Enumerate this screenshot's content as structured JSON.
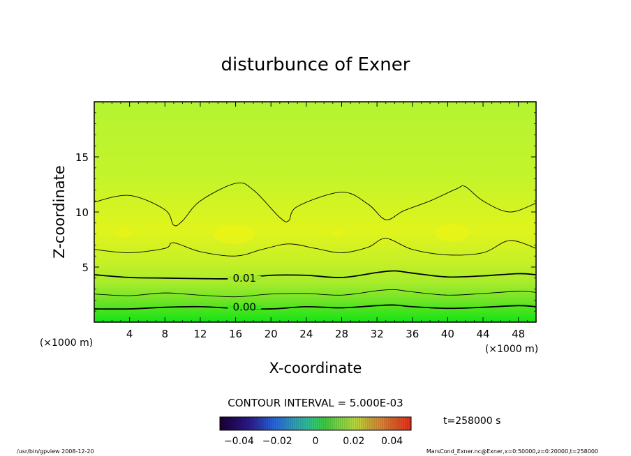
{
  "chart_data": {
    "type": "heatmap",
    "title": "disturbunce of Exner",
    "xlabel": "X-coordinate",
    "ylabel": "Z-coordinate",
    "x_unit_left": "(×1000 m)",
    "x_unit_right": "(×1000 m)",
    "xlim": [
      0,
      50
    ],
    "ylim": [
      0,
      20
    ],
    "x_ticks": [
      4,
      8,
      12,
      16,
      20,
      24,
      28,
      32,
      36,
      40,
      44,
      48
    ],
    "y_ticks": [
      5,
      10,
      15
    ],
    "contour_labels": [
      {
        "text": "0.01",
        "x": 17,
        "y": 4.0
      },
      {
        "text": "0.00",
        "x": 17,
        "y": 1.35
      }
    ],
    "contour_lines": [
      {
        "name": "upper",
        "x": [
          0,
          4,
          8,
          9,
          10,
          12,
          16,
          18,
          21,
          22,
          23,
          28,
          31,
          33,
          35,
          38,
          41,
          42,
          44,
          47,
          50
        ],
        "y": [
          10.9,
          11.5,
          10.2,
          8.8,
          9.2,
          11.0,
          12.6,
          12.0,
          9.5,
          9.2,
          10.5,
          11.8,
          10.7,
          9.3,
          10.1,
          11.0,
          12.1,
          12.3,
          11.0,
          10.0,
          10.8
        ],
        "bold": false
      },
      {
        "name": "mid-upper",
        "x": [
          0,
          4,
          8,
          9,
          12,
          16,
          19,
          22,
          25,
          28,
          31,
          33,
          36,
          40,
          44,
          47,
          50
        ],
        "y": [
          6.6,
          6.3,
          6.7,
          7.2,
          6.4,
          6.0,
          6.6,
          7.1,
          6.7,
          6.3,
          6.8,
          7.6,
          6.6,
          6.1,
          6.3,
          7.4,
          6.7
        ],
        "bold": false
      },
      {
        "name": "0.01",
        "x": [
          0,
          4,
          8,
          12,
          16,
          20,
          24,
          28,
          32,
          34,
          36,
          40,
          44,
          48,
          50
        ],
        "y": [
          4.3,
          4.05,
          4.0,
          3.95,
          3.95,
          4.25,
          4.25,
          4.05,
          4.5,
          4.65,
          4.45,
          4.1,
          4.2,
          4.4,
          4.3
        ],
        "bold": true
      },
      {
        "name": "mid-lower",
        "x": [
          0,
          4,
          8,
          12,
          16,
          20,
          24,
          28,
          32,
          34,
          36,
          40,
          44,
          48,
          50
        ],
        "y": [
          2.55,
          2.4,
          2.65,
          2.45,
          2.3,
          2.55,
          2.6,
          2.45,
          2.85,
          2.95,
          2.75,
          2.45,
          2.6,
          2.8,
          2.7
        ],
        "bold": false
      },
      {
        "name": "0.00",
        "x": [
          0,
          4,
          8,
          12,
          16,
          20,
          24,
          28,
          32,
          34,
          36,
          40,
          44,
          48,
          50
        ],
        "y": [
          1.2,
          1.2,
          1.35,
          1.4,
          1.25,
          1.2,
          1.4,
          1.3,
          1.5,
          1.55,
          1.4,
          1.25,
          1.35,
          1.5,
          1.4
        ],
        "bold": true
      }
    ],
    "contour_interval_text": "CONTOUR INTERVAL = 5.000E-03",
    "time_text": "t=258000 s",
    "colorbar": {
      "range": [
        -0.05,
        0.05
      ],
      "tick_labels": [
        "−0.04",
        "−0.02",
        "0",
        "0.02",
        "0.04"
      ],
      "tick_values": [
        -0.04,
        -0.02,
        0,
        0.02,
        0.04
      ]
    },
    "fill_colors": {
      "top": "#b4f431",
      "middle": "#e0f41c",
      "lower": "#a8ec2c",
      "bottom": "#14e414"
    },
    "grid": false,
    "legend": "colorbar-bottom"
  },
  "footer": {
    "left": "/usr/bin/gpview   2008-12-20",
    "right": "MarsCond_Exner.nc@Exner,x=0:50000,z=0:20000,t=258000"
  }
}
